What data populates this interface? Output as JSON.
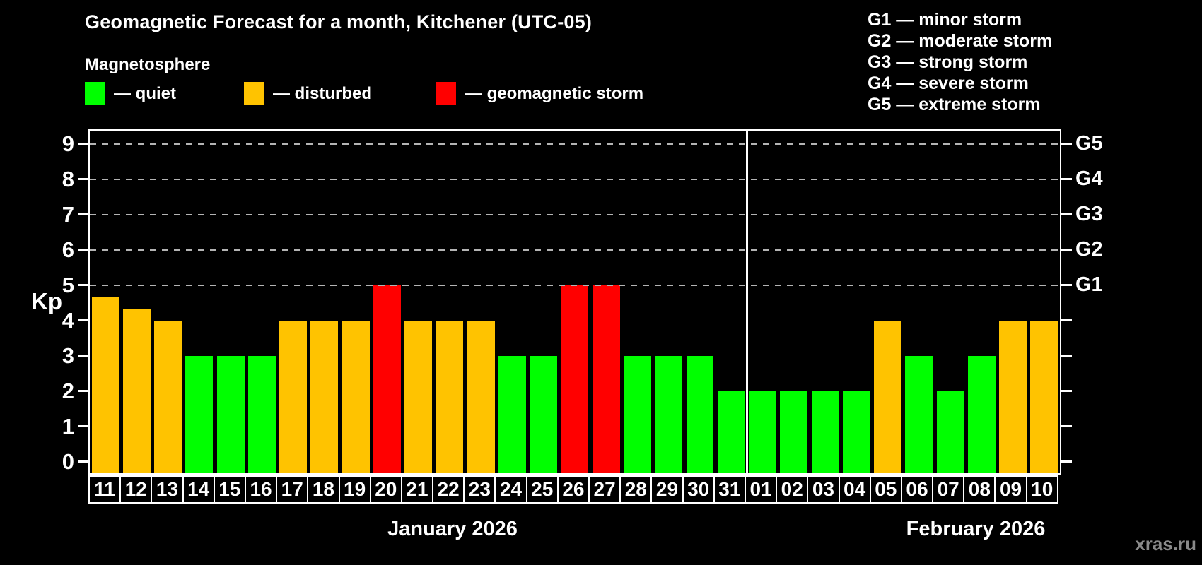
{
  "title": "Geomagnetic Forecast for a month, Kitchener (UTC-05)",
  "legend": {
    "title": "Magnetosphere",
    "items": [
      {
        "key": "quiet",
        "label": "— quiet"
      },
      {
        "key": "disturbed",
        "label": "— disturbed"
      },
      {
        "key": "storm",
        "label": "— geomagnetic storm"
      }
    ]
  },
  "g_legend": [
    "G1 — minor storm",
    "G2 — moderate storm",
    "G3 — strong storm",
    "G4 — severe storm",
    "G5 — extreme storm"
  ],
  "months": [
    {
      "label": "January 2026",
      "days": 21
    },
    {
      "label": "February 2026",
      "days": 10
    }
  ],
  "watermark": "xras.ru",
  "chart_data": {
    "type": "bar",
    "title": "Geomagnetic Forecast for a month, Kitchener (UTC-05)",
    "ylabel": "Kp",
    "ylim": [
      0,
      9.7
    ],
    "y_ticks": [
      0,
      1,
      2,
      3,
      4,
      5,
      6,
      7,
      8,
      9
    ],
    "grid_kp_levels": [
      5,
      6,
      7,
      8,
      9
    ],
    "grid_style": "dashed",
    "right_axis": [
      {
        "label": "G1",
        "kp": 5
      },
      {
        "label": "G2",
        "kp": 6
      },
      {
        "label": "G3",
        "kp": 7
      },
      {
        "label": "G4",
        "kp": 8
      },
      {
        "label": "G5",
        "kp": 9
      }
    ],
    "categories": [
      "11",
      "12",
      "13",
      "14",
      "15",
      "16",
      "17",
      "18",
      "19",
      "20",
      "21",
      "22",
      "23",
      "24",
      "25",
      "26",
      "27",
      "28",
      "29",
      "30",
      "31",
      "01",
      "02",
      "03",
      "04",
      "05",
      "06",
      "07",
      "08",
      "09",
      "10"
    ],
    "values": [
      4.67,
      4.33,
      4,
      3,
      3,
      3,
      4,
      4,
      4,
      5,
      4,
      4,
      4,
      3,
      3,
      5,
      5,
      3,
      3,
      3,
      2,
      2,
      2,
      2,
      2,
      4,
      3,
      2,
      3,
      4,
      4
    ],
    "statuses": [
      "disturbed",
      "disturbed",
      "disturbed",
      "quiet",
      "quiet",
      "quiet",
      "disturbed",
      "disturbed",
      "disturbed",
      "storm",
      "disturbed",
      "disturbed",
      "disturbed",
      "quiet",
      "quiet",
      "storm",
      "storm",
      "quiet",
      "quiet",
      "quiet",
      "quiet",
      "quiet",
      "quiet",
      "quiet",
      "quiet",
      "disturbed",
      "quiet",
      "quiet",
      "quiet",
      "disturbed",
      "disturbed"
    ],
    "colors": {
      "quiet": "#00ff00",
      "disturbed": "#ffc300",
      "storm": "#ff0000",
      "background": "#000000",
      "axis": "#ffffff",
      "gridline": "#b4b4b4",
      "watermark": "#8a8a8a"
    },
    "month_split_after": 21
  }
}
